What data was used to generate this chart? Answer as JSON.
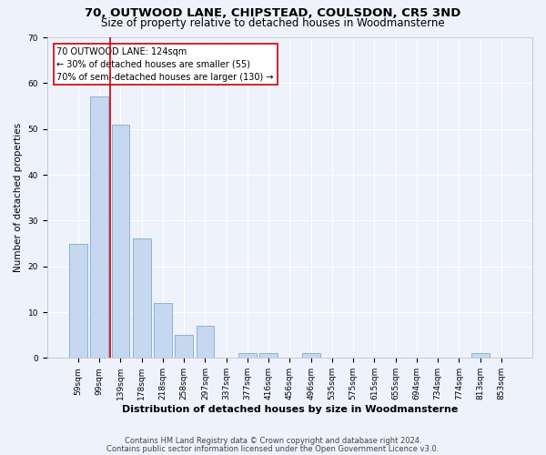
{
  "title1": "70, OUTWOOD LANE, CHIPSTEAD, COULSDON, CR5 3ND",
  "title2": "Size of property relative to detached houses in Woodmansterne",
  "xlabel": "Distribution of detached houses by size in Woodmansterne",
  "ylabel": "Number of detached properties",
  "categories": [
    "59sqm",
    "99sqm",
    "139sqm",
    "178sqm",
    "218sqm",
    "258sqm",
    "297sqm",
    "337sqm",
    "377sqm",
    "416sqm",
    "456sqm",
    "496sqm",
    "535sqm",
    "575sqm",
    "615sqm",
    "655sqm",
    "694sqm",
    "734sqm",
    "774sqm",
    "813sqm",
    "853sqm"
  ],
  "values": [
    25,
    57,
    51,
    26,
    12,
    5,
    7,
    0,
    1,
    1,
    0,
    1,
    0,
    0,
    0,
    0,
    0,
    0,
    0,
    1,
    0
  ],
  "bar_color": "#c5d8ef",
  "bar_edge_color": "#7aadd4",
  "vline_x": 1.5,
  "vline_color": "#cc0000",
  "annotation_lines": [
    "70 OUTWOOD LANE: 124sqm",
    "← 30% of detached houses are smaller (55)",
    "70% of semi-detached houses are larger (130) →"
  ],
  "ylim": [
    0,
    70
  ],
  "yticks": [
    0,
    10,
    20,
    30,
    40,
    50,
    60,
    70
  ],
  "footer1": "Contains HM Land Registry data © Crown copyright and database right 2024.",
  "footer2": "Contains public sector information licensed under the Open Government Licence v3.0.",
  "bg_color": "#eef2fb",
  "plot_bg_color": "#eef2fb",
  "grid_color": "#ffffff",
  "title1_fontsize": 9.5,
  "title2_fontsize": 8.5,
  "xlabel_fontsize": 8,
  "ylabel_fontsize": 7.5,
  "tick_fontsize": 6.5,
  "annot_fontsize": 7,
  "footer_fontsize": 6
}
